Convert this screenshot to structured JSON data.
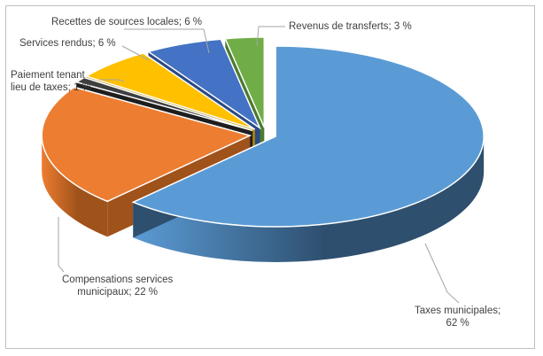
{
  "chart_data": {
    "type": "pie",
    "title": "",
    "legend": "none",
    "categories": [
      "Taxes municipales",
      "Compensations services municipaux",
      "Paiement tenant lieu de taxes",
      "Services rendus",
      "Recettes de sources locales",
      "Revenus de transferts"
    ],
    "values": [
      62,
      22,
      1,
      6,
      6,
      3
    ],
    "colors": [
      "#5B9BD5",
      "#ED7D31",
      "#3F3F3F",
      "#A5A5A5",
      "#FFC000",
      "#4472C4",
      "#70AD47"
    ],
    "data_labels": {
      "taxes": [
        "Taxes municipales;",
        "62 %"
      ],
      "compensations": [
        "Compensations services",
        "municipaux; 22 %"
      ],
      "paiement": [
        "Paiement tenant",
        "lieu de taxes; 1 %"
      ],
      "services": "Services rendus; 6 %",
      "recettes": "Recettes de sources locales; 6 %",
      "transferts": "Revenus de transferts; 3 %"
    }
  }
}
